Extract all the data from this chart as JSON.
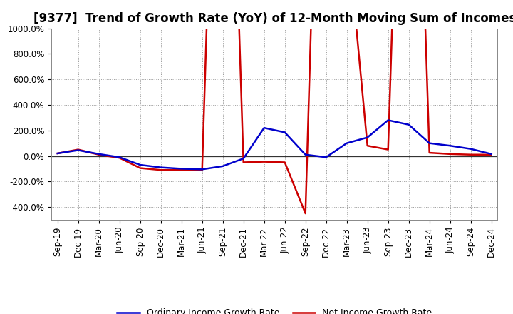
{
  "title": "[9377]  Trend of Growth Rate (YoY) of 12-Month Moving Sum of Incomes",
  "ylim": [
    -500,
    1000
  ],
  "yticks": [
    -400,
    -200,
    0,
    200,
    400,
    600,
    800,
    1000
  ],
  "ytick_labels": [
    "-400.0%",
    "-200.0%",
    "0.0%",
    "200.0%",
    "400.0%",
    "600.0%",
    "800.0%",
    "1000.0%"
  ],
  "x_labels": [
    "Sep-19",
    "Dec-19",
    "Mar-20",
    "Jun-20",
    "Sep-20",
    "Dec-20",
    "Mar-21",
    "Jun-21",
    "Sep-21",
    "Dec-21",
    "Mar-22",
    "Jun-22",
    "Sep-22",
    "Dec-22",
    "Mar-23",
    "Jun-23",
    "Sep-23",
    "Dec-23",
    "Mar-24",
    "Jun-24",
    "Sep-24",
    "Dec-24"
  ],
  "ordinary_income": [
    20,
    45,
    15,
    -10,
    -70,
    -90,
    -100,
    -105,
    -80,
    -20,
    220,
    185,
    10,
    -10,
    100,
    145,
    280,
    245,
    100,
    80,
    55,
    15
  ],
  "net_income": [
    20,
    50,
    10,
    -15,
    -95,
    -110,
    -110,
    -110,
    5000,
    -50,
    -45,
    -50,
    -450,
    5000,
    1800,
    80,
    50,
    5000,
    25,
    15,
    10,
    10
  ],
  "ordinary_color": "#0000CC",
  "net_color": "#CC0000",
  "background_color": "#FFFFFF",
  "grid_color": "#999999",
  "legend_ordinary": "Ordinary Income Growth Rate",
  "legend_net": "Net Income Growth Rate",
  "title_fontsize": 12,
  "tick_fontsize": 8.5
}
